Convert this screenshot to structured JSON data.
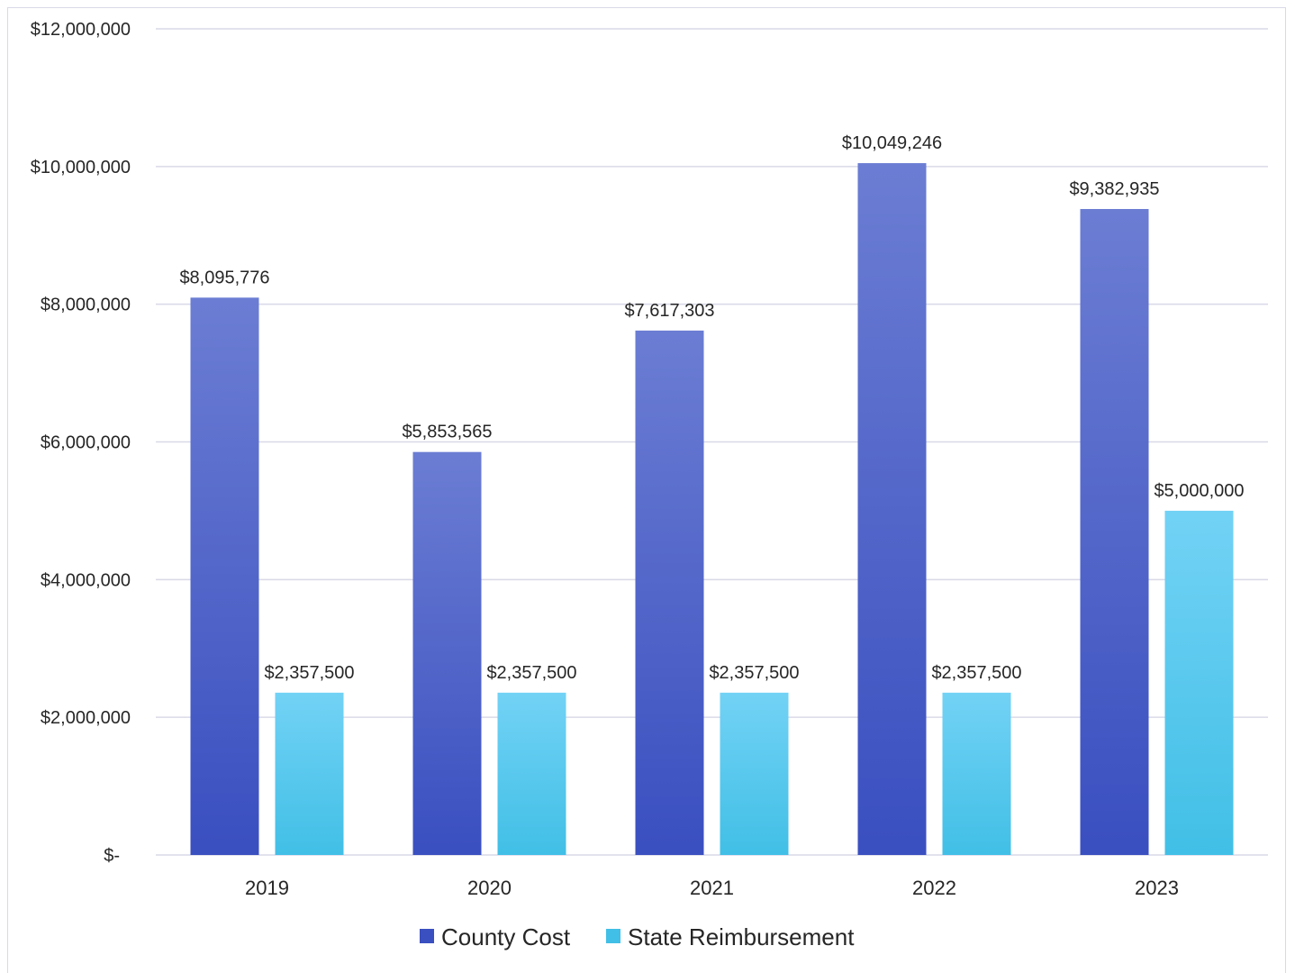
{
  "chart_data": {
    "type": "bar",
    "title": "",
    "xlabel": "",
    "ylabel": "",
    "categories": [
      "2019",
      "2020",
      "2021",
      "2022",
      "2023"
    ],
    "series": [
      {
        "name": "County Cost",
        "values": [
          8095776,
          5853565,
          7617303,
          10049246,
          9382935
        ],
        "labels": [
          "$8,095,776",
          "$5,853,565",
          "$7,617,303",
          "$10,049,246",
          "$9,382,935"
        ],
        "color_top": "#6b7dd3",
        "color_bottom": "#3a4fc0"
      },
      {
        "name": "State Reimbursement",
        "values": [
          2357500,
          2357500,
          2357500,
          2357500,
          5000000
        ],
        "labels": [
          "$2,357,500",
          "$2,357,500",
          "$2,357,500",
          "$2,357,500",
          "$5,000,000"
        ],
        "color_top": "#72d2f5",
        "color_bottom": "#41bfe6"
      }
    ],
    "ylim": [
      0,
      12000000
    ],
    "y_ticks": [
      0,
      2000000,
      4000000,
      6000000,
      8000000,
      10000000,
      12000000
    ],
    "y_tick_labels": [
      "$-",
      "$2,000,000",
      "$4,000,000",
      "$6,000,000",
      "$8,000,000",
      "$10,000,000",
      "$12,000,000"
    ],
    "grid": true,
    "legend_position": "bottom",
    "gridline_color": "#d9d9e8",
    "text_color": "#262626"
  }
}
